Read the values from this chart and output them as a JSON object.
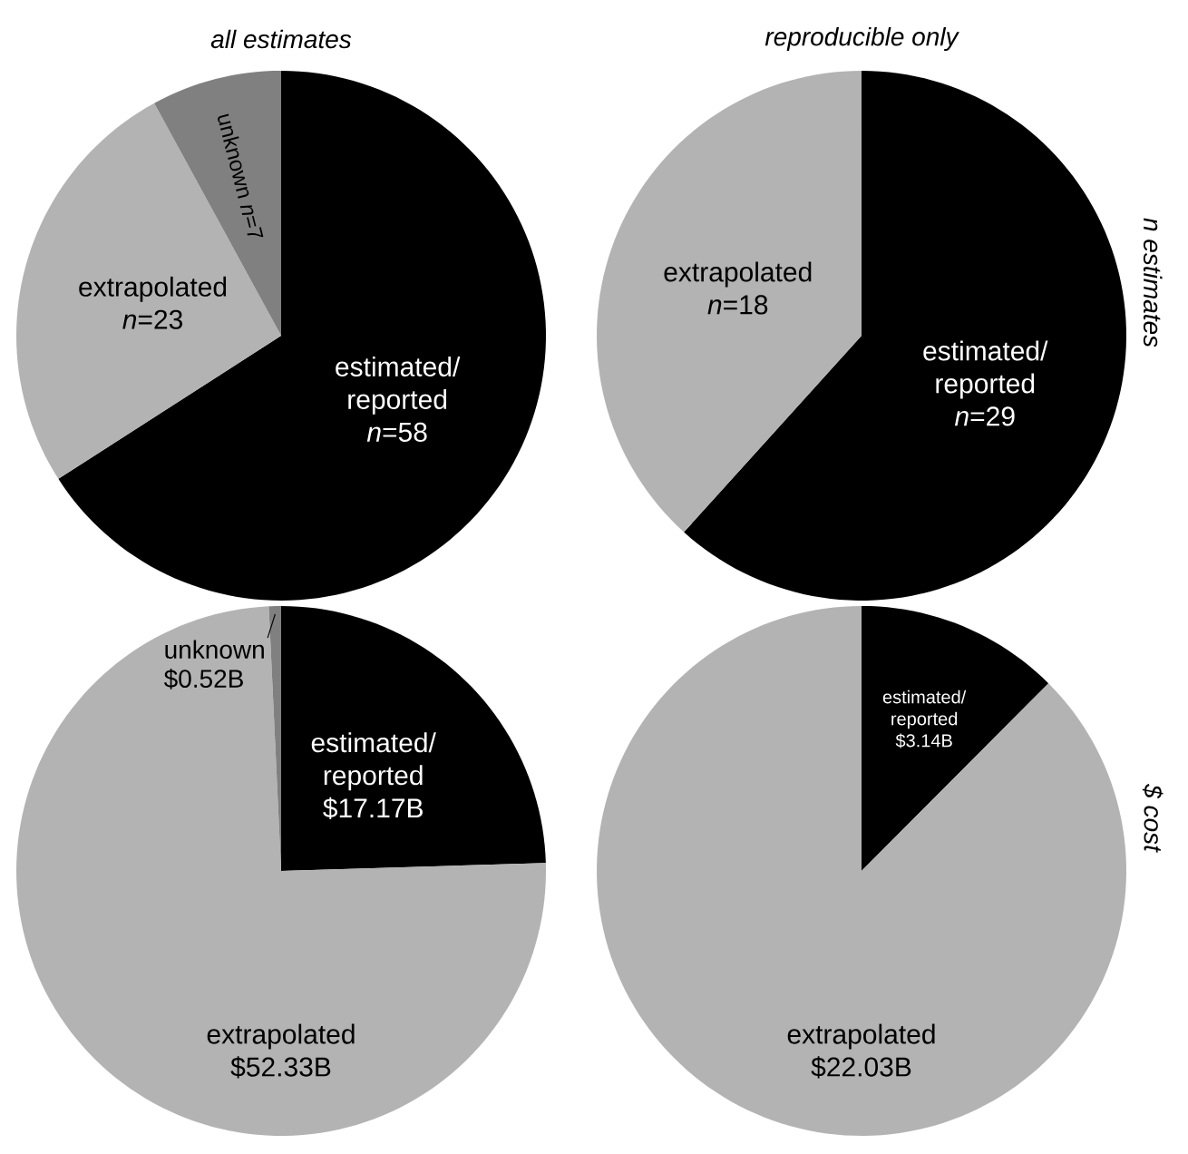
{
  "chart_data": [
    {
      "type": "pie",
      "title": "all estimates",
      "categories": [
        "estimated/ reported",
        "extrapolated",
        "unknown"
      ],
      "values": [
        58,
        23,
        7
      ],
      "value_labels": [
        "*n*=58",
        "*n*=23",
        "*n*=7"
      ],
      "colors": [
        "#000000",
        "#b3b3b3",
        "#808080"
      ]
    },
    {
      "type": "pie",
      "title": "reproducible only",
      "y2label": "n estimates",
      "categories": [
        "estimated/ reported",
        "extrapolated"
      ],
      "values": [
        29,
        18
      ],
      "value_labels": [
        "*n*=29",
        "*n*=18"
      ],
      "colors": [
        "#000000",
        "#b3b3b3"
      ]
    },
    {
      "type": "pie",
      "categories": [
        "estimated/ reported",
        "extrapolated",
        "unknown"
      ],
      "values": [
        17.17,
        52.33,
        0.52
      ],
      "value_labels": [
        "$17.17B",
        "$52.33B",
        "$0.52B"
      ],
      "colors": [
        "#000000",
        "#b3b3b3",
        "#808080"
      ]
    },
    {
      "type": "pie",
      "y2label": "$ cost",
      "categories": [
        "estimated/ reported",
        "extrapolated"
      ],
      "values": [
        3.14,
        22.03
      ],
      "value_labels": [
        "$3.14B",
        "$22.03B"
      ],
      "colors": [
        "#000000",
        "#b3b3b3"
      ]
    }
  ]
}
